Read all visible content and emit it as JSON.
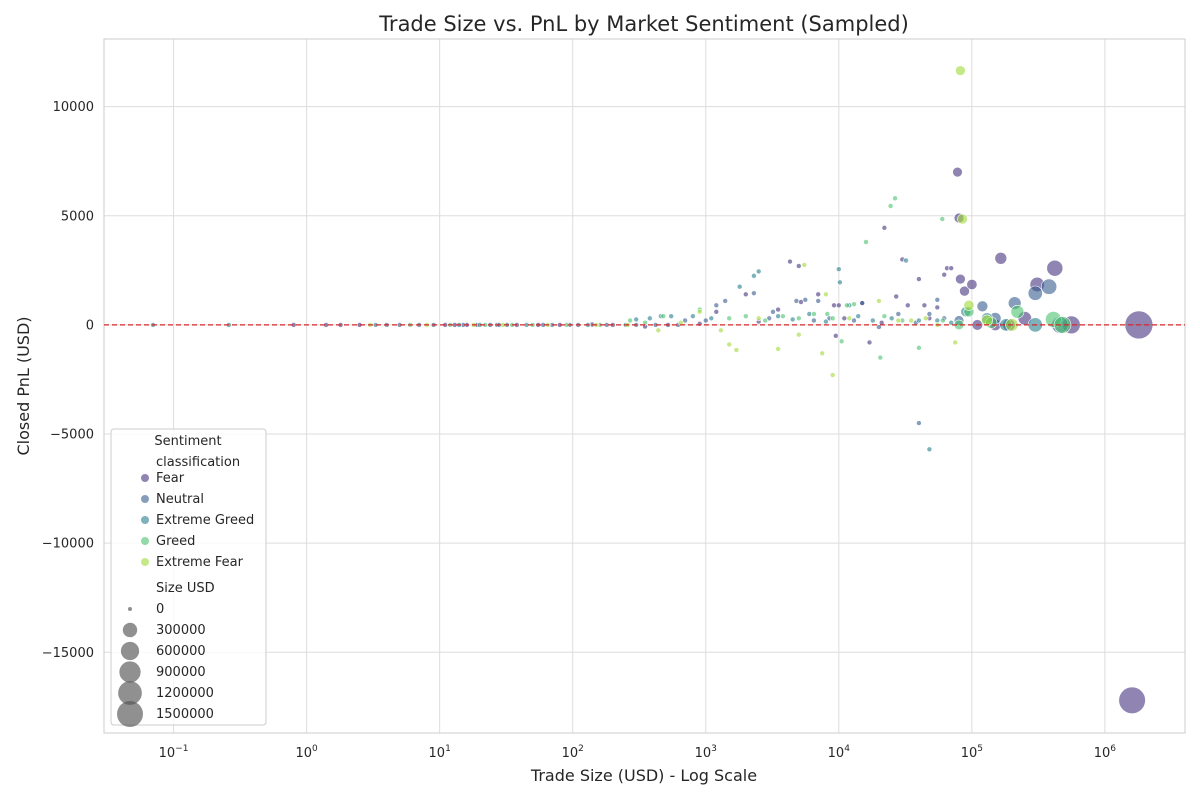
{
  "chart_data": {
    "type": "scatter",
    "title": "Trade Size vs. PnL by Market Sentiment (Sampled)",
    "xlabel": "Trade Size (USD) - Log Scale",
    "ylabel": "Closed PnL (USD)",
    "x_scale": "log",
    "xlim": [
      0.03,
      4000000
    ],
    "ylim": [
      -18700,
      13100
    ],
    "x_ticks": [
      {
        "value": 0.1,
        "base": "10",
        "exp": "−1"
      },
      {
        "value": 1,
        "base": "10",
        "exp": "0"
      },
      {
        "value": 10,
        "base": "10",
        "exp": "1"
      },
      {
        "value": 100,
        "base": "10",
        "exp": "2"
      },
      {
        "value": 1000,
        "base": "10",
        "exp": "3"
      },
      {
        "value": 10000,
        "base": "10",
        "exp": "4"
      },
      {
        "value": 100000,
        "base": "10",
        "exp": "5"
      },
      {
        "value": 1000000,
        "base": "10",
        "exp": "6"
      }
    ],
    "y_ticks": [
      {
        "value": 10000,
        "label": "10000"
      },
      {
        "value": 5000,
        "label": "5000"
      },
      {
        "value": 0,
        "label": "0"
      },
      {
        "value": -5000,
        "label": "−5000"
      },
      {
        "value": -10000,
        "label": "−10000"
      },
      {
        "value": -15000,
        "label": "−15000"
      }
    ],
    "grid": true,
    "reference_line": {
      "y": 0,
      "color": "#d62728",
      "style": "dashed"
    },
    "legend": {
      "title": "Sentiment",
      "placement": "lower-left",
      "hue_title": "classification",
      "size_title": "Size USD",
      "size_entries": [
        {
          "label": "0",
          "value": 0
        },
        {
          "label": "300000",
          "value": 300000
        },
        {
          "label": "600000",
          "value": 600000
        },
        {
          "label": "900000",
          "value": 900000
        },
        {
          "label": "1200000",
          "value": 1200000
        },
        {
          "label": "1500000",
          "value": 1500000
        }
      ]
    },
    "series": [
      {
        "name": "Fear",
        "color": "#46337e",
        "points": [
          [
            0.8,
            0
          ],
          [
            1.4,
            0
          ],
          [
            1.8,
            0
          ],
          [
            2.5,
            0
          ],
          [
            11,
            0
          ],
          [
            13,
            0
          ],
          [
            16,
            0
          ],
          [
            19,
            0
          ],
          [
            27,
            0
          ],
          [
            38,
            0
          ],
          [
            55,
            0
          ],
          [
            80,
            0
          ],
          [
            140,
            20
          ],
          [
            200,
            0
          ],
          [
            350,
            -80
          ],
          [
            520,
            0
          ],
          [
            900,
            50
          ],
          [
            1200,
            600
          ],
          [
            2000,
            1400
          ],
          [
            2500,
            150
          ],
          [
            3500,
            700
          ],
          [
            4300,
            2900
          ],
          [
            5000,
            2700
          ],
          [
            5200,
            1050
          ],
          [
            7000,
            1400
          ],
          [
            9200,
            900
          ],
          [
            9500,
            -500
          ],
          [
            10000,
            900
          ],
          [
            11000,
            300
          ],
          [
            15000,
            1000
          ],
          [
            17000,
            -800
          ],
          [
            21000,
            100
          ],
          [
            22000,
            4450
          ],
          [
            27000,
            1300
          ],
          [
            30000,
            3000
          ],
          [
            33000,
            900
          ],
          [
            40000,
            2100
          ],
          [
            44000,
            900
          ],
          [
            48000,
            300
          ],
          [
            55000,
            800
          ],
          [
            62000,
            2300
          ],
          [
            65000,
            2600
          ],
          [
            70000,
            2600
          ],
          [
            78000,
            7000
          ],
          [
            80000,
            4900
          ],
          [
            82000,
            2100
          ],
          [
            88000,
            1550
          ],
          [
            100000,
            1850
          ],
          [
            110000,
            0
          ],
          [
            150000,
            0
          ],
          [
            165000,
            3050
          ],
          [
            190000,
            0
          ],
          [
            250000,
            300
          ],
          [
            310000,
            1850
          ],
          [
            420000,
            2600
          ],
          [
            560000,
            0
          ],
          [
            1600000,
            -17200
          ],
          [
            1800000,
            0
          ]
        ],
        "sizes": [
          1,
          1,
          1,
          1,
          1,
          1,
          1,
          1,
          1,
          1,
          1,
          1,
          1,
          1,
          1,
          1,
          1,
          1,
          1,
          1,
          1,
          1,
          1,
          1,
          1,
          1,
          1,
          1,
          1,
          1,
          1,
          1,
          1,
          1,
          1,
          1,
          1,
          1,
          1,
          1,
          1,
          1,
          1,
          78000,
          80000,
          82000,
          88000,
          100000,
          110000,
          150000,
          165000,
          190000,
          250000,
          310000,
          420000,
          560000,
          1600000,
          1800000
        ]
      },
      {
        "name": "Neutral",
        "color": "#365c8d",
        "points": [
          [
            4,
            0
          ],
          [
            5,
            0
          ],
          [
            7,
            0
          ],
          [
            9,
            0
          ],
          [
            15,
            0
          ],
          [
            24,
            0
          ],
          [
            32,
            0
          ],
          [
            60,
            0
          ],
          [
            95,
            0
          ],
          [
            110,
            0
          ],
          [
            180,
            0
          ],
          [
            300,
            0
          ],
          [
            420,
            0
          ],
          [
            620,
            0
          ],
          [
            700,
            200
          ],
          [
            1000,
            200
          ],
          [
            1200,
            900
          ],
          [
            1400,
            1100
          ],
          [
            2300,
            1450
          ],
          [
            3000,
            300
          ],
          [
            3200,
            600
          ],
          [
            4800,
            1100
          ],
          [
            5600,
            1150
          ],
          [
            6500,
            200
          ],
          [
            7000,
            1100
          ],
          [
            8500,
            300
          ],
          [
            13000,
            200
          ],
          [
            15000,
            1000
          ],
          [
            20000,
            -100
          ],
          [
            28000,
            500
          ],
          [
            38000,
            100
          ],
          [
            40000,
            -4500
          ],
          [
            48000,
            500
          ],
          [
            55000,
            1150
          ],
          [
            62000,
            300
          ],
          [
            80000,
            200
          ],
          [
            120000,
            850
          ],
          [
            150000,
            300
          ],
          [
            210000,
            1000
          ],
          [
            300000,
            1450
          ],
          [
            380000,
            1750
          ],
          [
            460000,
            0
          ]
        ],
        "sizes": [
          1,
          1,
          1,
          1,
          1,
          1,
          1,
          1,
          1,
          1,
          1,
          1,
          1,
          1,
          1,
          1,
          1,
          1,
          1,
          1,
          1,
          1,
          1,
          1,
          1,
          1,
          1,
          1,
          1,
          1,
          1,
          1,
          1,
          1,
          1,
          80000,
          120000,
          150000,
          210000,
          300000,
          380000,
          460000
        ]
      },
      {
        "name": "Extreme Greed",
        "color": "#277f8e",
        "points": [
          [
            0.07,
            0
          ],
          [
            0.26,
            0
          ],
          [
            3.3,
            0
          ],
          [
            14,
            0
          ],
          [
            20,
            0
          ],
          [
            28,
            0
          ],
          [
            45,
            0
          ],
          [
            70,
            0
          ],
          [
            130,
            0
          ],
          [
            250,
            0
          ],
          [
            300,
            250
          ],
          [
            380,
            300
          ],
          [
            460,
            400
          ],
          [
            550,
            400
          ],
          [
            800,
            400
          ],
          [
            1100,
            300
          ],
          [
            1800,
            1750
          ],
          [
            2300,
            2250
          ],
          [
            2500,
            2450
          ],
          [
            3500,
            400
          ],
          [
            4500,
            250
          ],
          [
            6000,
            500
          ],
          [
            8000,
            150
          ],
          [
            10000,
            2550
          ],
          [
            10200,
            1950
          ],
          [
            12000,
            900
          ],
          [
            14000,
            400
          ],
          [
            18000,
            200
          ],
          [
            25000,
            300
          ],
          [
            32000,
            2950
          ],
          [
            40000,
            200
          ],
          [
            48000,
            -5700
          ],
          [
            55000,
            200
          ],
          [
            70000,
            100
          ],
          [
            90000,
            600
          ],
          [
            130000,
            300
          ],
          [
            180000,
            0
          ],
          [
            300000,
            0
          ]
        ],
        "sizes": [
          1,
          1,
          1,
          1,
          1,
          1,
          1,
          1,
          1,
          1,
          1,
          1,
          1,
          1,
          1,
          1,
          1,
          1,
          1,
          1,
          1,
          1,
          1,
          1,
          1,
          1,
          1,
          1,
          1,
          1,
          1,
          1,
          1,
          1,
          90000,
          130000,
          180000,
          300000
        ]
      },
      {
        "name": "Greed",
        "color": "#4ac16d",
        "points": [
          [
            6,
            0
          ],
          [
            12,
            0
          ],
          [
            22,
            0
          ],
          [
            35,
            0
          ],
          [
            50,
            0
          ],
          [
            90,
            0
          ],
          [
            160,
            0
          ],
          [
            270,
            200
          ],
          [
            350,
            100
          ],
          [
            480,
            400
          ],
          [
            900,
            700
          ],
          [
            1500,
            300
          ],
          [
            2000,
            400
          ],
          [
            2800,
            200
          ],
          [
            3800,
            400
          ],
          [
            5000,
            300
          ],
          [
            6500,
            500
          ],
          [
            8200,
            500
          ],
          [
            9000,
            300
          ],
          [
            10500,
            -750
          ],
          [
            11500,
            900
          ],
          [
            13000,
            950
          ],
          [
            16000,
            3800
          ],
          [
            20500,
            -1500
          ],
          [
            22000,
            400
          ],
          [
            24500,
            5450
          ],
          [
            26500,
            5800
          ],
          [
            30000,
            200
          ],
          [
            40000,
            -1050
          ],
          [
            60000,
            4850
          ],
          [
            60500,
            200
          ],
          [
            80000,
            0
          ],
          [
            95000,
            600
          ],
          [
            140000,
            100
          ],
          [
            220000,
            600
          ],
          [
            410000,
            250
          ],
          [
            480000,
            0
          ]
        ],
        "sizes": [
          1,
          1,
          1,
          1,
          1,
          1,
          1,
          1,
          1,
          1,
          1,
          1,
          1,
          1,
          1,
          1,
          1,
          1,
          1,
          1,
          1,
          1,
          1,
          1,
          1,
          1,
          1,
          1,
          1,
          1,
          1,
          80000,
          95000,
          140000,
          220000,
          410000,
          480000
        ]
      },
      {
        "name": "Extreme Fear",
        "color": "#a0da39",
        "points": [
          [
            3,
            0
          ],
          [
            8,
            0
          ],
          [
            18,
            0
          ],
          [
            30,
            0
          ],
          [
            65,
            0
          ],
          [
            150,
            0
          ],
          [
            260,
            0
          ],
          [
            440,
            -250
          ],
          [
            650,
            100
          ],
          [
            900,
            600
          ],
          [
            1300,
            -250
          ],
          [
            1500,
            -900
          ],
          [
            1700,
            -1150
          ],
          [
            2500,
            300
          ],
          [
            3500,
            -1100
          ],
          [
            5000,
            -450
          ],
          [
            5500,
            2750
          ],
          [
            7500,
            -1300
          ],
          [
            8000,
            1400
          ],
          [
            9000,
            -2300
          ],
          [
            12000,
            300
          ],
          [
            20000,
            1100
          ],
          [
            28000,
            200
          ],
          [
            35000,
            200
          ],
          [
            45000,
            300
          ],
          [
            55000,
            0
          ],
          [
            75000,
            -800
          ],
          [
            82000,
            11650
          ],
          [
            85000,
            4850
          ],
          [
            95000,
            900
          ],
          [
            130000,
            200
          ],
          [
            200000,
            0
          ]
        ],
        "sizes": [
          1,
          1,
          1,
          1,
          1,
          1,
          1,
          1,
          1,
          1,
          1,
          1,
          1,
          1,
          1,
          1,
          1,
          1,
          1,
          1,
          1,
          1,
          1,
          1,
          1,
          1,
          1,
          82000,
          85000,
          95000,
          130000,
          200000
        ]
      }
    ]
  }
}
